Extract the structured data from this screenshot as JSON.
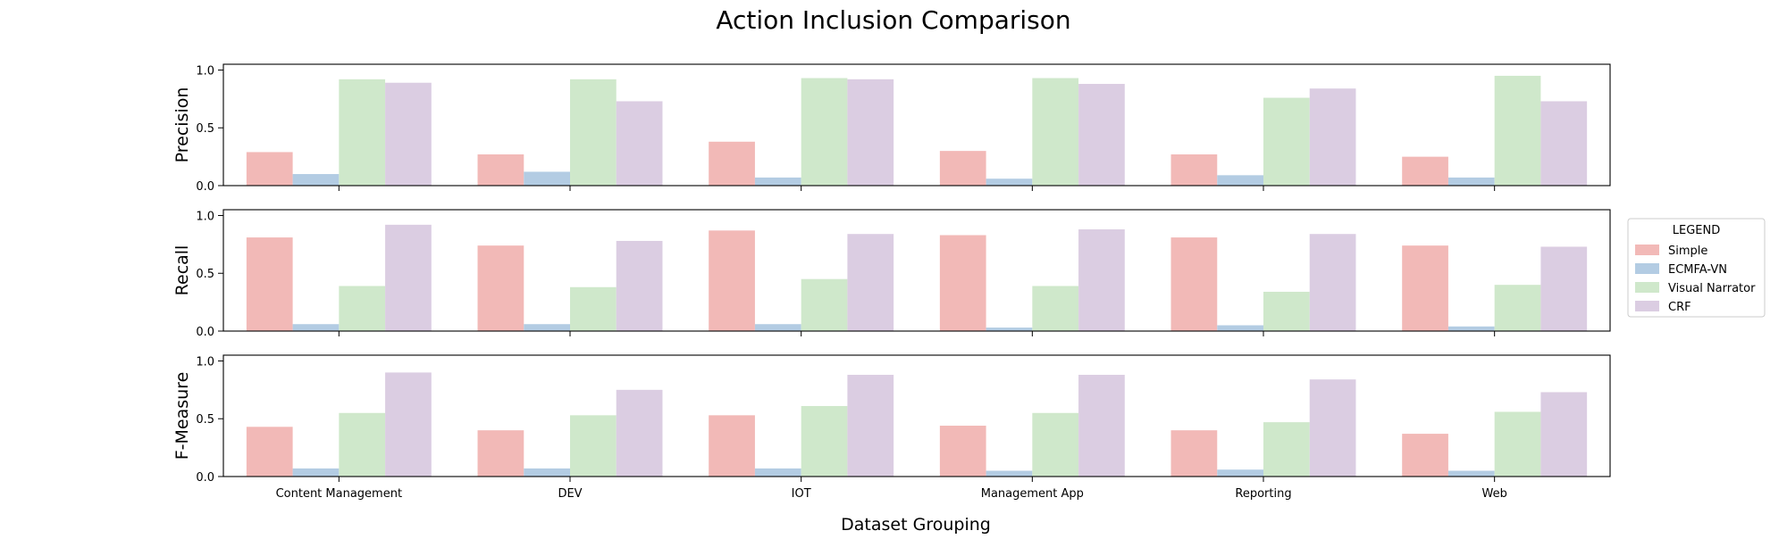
{
  "chart_data": {
    "type": "bar",
    "title": "Action Inclusion Comparison",
    "xlabel": "Dataset Grouping",
    "categories": [
      "Content Management",
      "DEV",
      "IOT",
      "Management App",
      "Reporting",
      "Web"
    ],
    "legend": {
      "title": "LEGEND",
      "placement": "right",
      "entries": [
        "Simple",
        "ECMFA-VN",
        "Visual Narrator",
        "CRF"
      ]
    },
    "colors": [
      "#f2b9b7",
      "#b3cce3",
      "#cfe8cb",
      "#dbcde2"
    ],
    "grid": false,
    "panels": [
      {
        "ylabel": "Precision",
        "ylim": [
          0,
          1.05
        ],
        "yticks": [
          "0.0",
          "0.5",
          "1.0"
        ],
        "series": [
          {
            "name": "Simple",
            "values": [
              0.29,
              0.27,
              0.38,
              0.3,
              0.27,
              0.25
            ]
          },
          {
            "name": "ECMFA-VN",
            "values": [
              0.1,
              0.12,
              0.07,
              0.06,
              0.09,
              0.07
            ]
          },
          {
            "name": "Visual Narrator",
            "values": [
              0.92,
              0.92,
              0.93,
              0.93,
              0.76,
              0.95
            ]
          },
          {
            "name": "CRF",
            "values": [
              0.89,
              0.73,
              0.92,
              0.88,
              0.84,
              0.73
            ]
          }
        ]
      },
      {
        "ylabel": "Recall",
        "ylim": [
          0,
          1.05
        ],
        "yticks": [
          "0.0",
          "0.5",
          "1.0"
        ],
        "series": [
          {
            "name": "Simple",
            "values": [
              0.81,
              0.74,
              0.87,
              0.83,
              0.81,
              0.74
            ]
          },
          {
            "name": "ECMFA-VN",
            "values": [
              0.06,
              0.06,
              0.06,
              0.03,
              0.05,
              0.04
            ]
          },
          {
            "name": "Visual Narrator",
            "values": [
              0.39,
              0.38,
              0.45,
              0.39,
              0.34,
              0.4
            ]
          },
          {
            "name": "CRF",
            "values": [
              0.92,
              0.78,
              0.84,
              0.88,
              0.84,
              0.73
            ]
          }
        ]
      },
      {
        "ylabel": "F-Measure",
        "ylim": [
          0,
          1.05
        ],
        "yticks": [
          "0.0",
          "0.5",
          "1.0"
        ],
        "series": [
          {
            "name": "Simple",
            "values": [
              0.43,
              0.4,
              0.53,
              0.44,
              0.4,
              0.37
            ]
          },
          {
            "name": "ECMFA-VN",
            "values": [
              0.07,
              0.07,
              0.07,
              0.05,
              0.06,
              0.05
            ]
          },
          {
            "name": "Visual Narrator",
            "values": [
              0.55,
              0.53,
              0.61,
              0.55,
              0.47,
              0.56
            ]
          },
          {
            "name": "CRF",
            "values": [
              0.9,
              0.75,
              0.88,
              0.88,
              0.84,
              0.73
            ]
          }
        ]
      }
    ]
  }
}
